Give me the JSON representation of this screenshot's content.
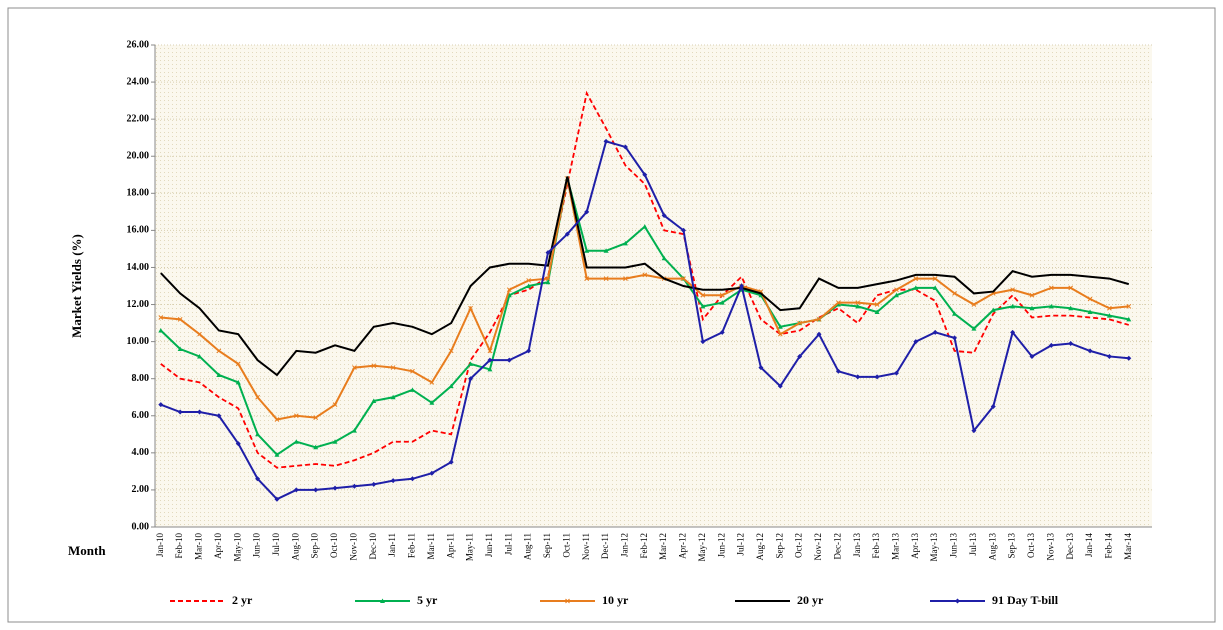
{
  "chart_data": {
    "type": "line",
    "y_label": "Market Yields (%)",
    "x_label": "Month",
    "categories": [
      "Jan-10",
      "Feb-10",
      "Mar-10",
      "Apr-10",
      "May-10",
      "Jun-10",
      "Jul-10",
      "Aug-10",
      "Sep-10",
      "Oct-10",
      "Nov-10",
      "Dec-10",
      "Jan-11",
      "Feb-11",
      "Mar-11",
      "Apr-11",
      "May-11",
      "Jun-11",
      "Jul-11",
      "Aug-11",
      "Sep-11",
      "Oct-11",
      "Nov-11",
      "Dec-11",
      "Jan-12",
      "Feb-12",
      "Mar-12",
      "Apr-12",
      "May-12",
      "Jun-12",
      "Jul-12",
      "Aug-12",
      "Sep-12",
      "Oct-12",
      "Nov-12",
      "Dec-12",
      "Jan-13",
      "Feb-13",
      "Mar-13",
      "Apr-13",
      "May-13",
      "Jun-13",
      "Jul-13",
      "Aug-13",
      "Sep-13",
      "Oct-13",
      "Nov-13",
      "Dec-13",
      "Jan-14",
      "Feb-14",
      "Mar-14"
    ],
    "series": [
      {
        "name": "2 yr",
        "color": "#ff0000",
        "dash": true,
        "marker": "none",
        "values": [
          8.8,
          8.0,
          7.8,
          7.0,
          6.4,
          4.0,
          3.2,
          3.3,
          3.4,
          3.3,
          3.6,
          4.0,
          4.6,
          4.6,
          5.2,
          5.0,
          9.0,
          10.5,
          12.5,
          12.8,
          13.5,
          18.5,
          23.4,
          21.5,
          19.5,
          18.5,
          16.0,
          15.8,
          11.2,
          12.5,
          13.5,
          11.2,
          10.4,
          10.6,
          11.3,
          11.8,
          11.0,
          12.5,
          12.8,
          12.8,
          12.2,
          9.5,
          9.4,
          11.5,
          12.5,
          11.3,
          11.4,
          11.4,
          11.3,
          11.2,
          10.9
        ]
      },
      {
        "name": "5 yr",
        "color": "#00b050",
        "dash": false,
        "marker": "triangle",
        "values": [
          10.6,
          9.6,
          9.2,
          8.2,
          7.8,
          5.0,
          3.9,
          4.6,
          4.3,
          4.6,
          5.2,
          6.8,
          7.0,
          7.4,
          6.7,
          7.6,
          8.8,
          8.5,
          12.5,
          13.0,
          13.2,
          18.8,
          14.9,
          14.9,
          15.3,
          16.2,
          14.5,
          13.4,
          11.9,
          12.1,
          12.8,
          12.5,
          10.8,
          11.0,
          11.2,
          12.0,
          11.9,
          11.6,
          12.5,
          12.9,
          12.9,
          11.5,
          10.7,
          11.7,
          11.9,
          11.8,
          11.9,
          11.8,
          11.6,
          11.4,
          11.2
        ]
      },
      {
        "name": "10 yr",
        "color": "#e87d1e",
        "dash": false,
        "marker": "x",
        "values": [
          11.3,
          11.2,
          10.4,
          9.5,
          8.8,
          7.0,
          5.8,
          6.0,
          5.9,
          6.6,
          8.6,
          8.7,
          8.6,
          8.4,
          7.8,
          9.5,
          11.8,
          9.5,
          12.8,
          13.3,
          13.4,
          18.8,
          13.4,
          13.4,
          13.4,
          13.6,
          13.4,
          13.4,
          12.5,
          12.5,
          13.0,
          12.7,
          10.4,
          11.0,
          11.2,
          12.1,
          12.1,
          12.0,
          12.8,
          13.4,
          13.4,
          12.6,
          12.0,
          12.6,
          12.8,
          12.5,
          12.9,
          12.9,
          12.3,
          11.8,
          11.9
        ]
      },
      {
        "name": "20 yr",
        "color": "#000000",
        "dash": false,
        "marker": "none",
        "values": [
          13.7,
          12.6,
          11.8,
          10.6,
          10.4,
          9.0,
          8.2,
          9.5,
          9.4,
          9.8,
          9.5,
          10.8,
          11.0,
          10.8,
          10.4,
          11.0,
          13.0,
          14.0,
          14.2,
          14.2,
          14.1,
          18.9,
          14.0,
          14.0,
          14.0,
          14.2,
          13.4,
          13.0,
          12.8,
          12.8,
          12.9,
          12.6,
          11.7,
          11.8,
          13.4,
          12.9,
          12.9,
          13.1,
          13.3,
          13.6,
          13.6,
          13.5,
          12.6,
          12.7,
          13.8,
          13.5,
          13.6,
          13.6,
          13.5,
          13.4,
          13.1
        ]
      },
      {
        "name": "91 Day T-bill",
        "color": "#1f1fa8",
        "dash": false,
        "marker": "diamond",
        "values": [
          6.6,
          6.2,
          6.2,
          6.0,
          4.5,
          2.6,
          1.5,
          2.0,
          2.0,
          2.1,
          2.2,
          2.3,
          2.5,
          2.6,
          2.9,
          3.5,
          8.0,
          9.0,
          9.0,
          9.5,
          14.8,
          15.8,
          17.0,
          20.8,
          20.5,
          19.0,
          16.8,
          16.0,
          10.0,
          10.5,
          13.0,
          8.6,
          7.6,
          9.2,
          10.4,
          8.4,
          8.1,
          8.1,
          8.3,
          10.0,
          10.5,
          10.2,
          5.2,
          6.5,
          10.5,
          9.2,
          9.8,
          9.9,
          9.5,
          9.2,
          9.1
        ]
      }
    ],
    "ylim": [
      0,
      26
    ],
    "yticks": [
      {
        "value": 0,
        "label": "0.00"
      },
      {
        "value": 2,
        "label": "2.00"
      },
      {
        "value": 4,
        "label": "4.00"
      },
      {
        "value": 6,
        "label": "6.00"
      },
      {
        "value": 8,
        "label": "8.00"
      },
      {
        "value": 10,
        "label": "10.00"
      },
      {
        "value": 12,
        "label": "12.00"
      },
      {
        "value": 14,
        "label": "14.00"
      },
      {
        "value": 16,
        "label": "16.00"
      },
      {
        "value": 18,
        "label": "18.00"
      },
      {
        "value": 20,
        "label": "20.00"
      },
      {
        "value": 22,
        "label": "22.00"
      },
      {
        "value": 24,
        "label": "24.00"
      },
      {
        "value": 26,
        "label": "26.00"
      }
    ],
    "grid": true,
    "legend": "bottom"
  }
}
